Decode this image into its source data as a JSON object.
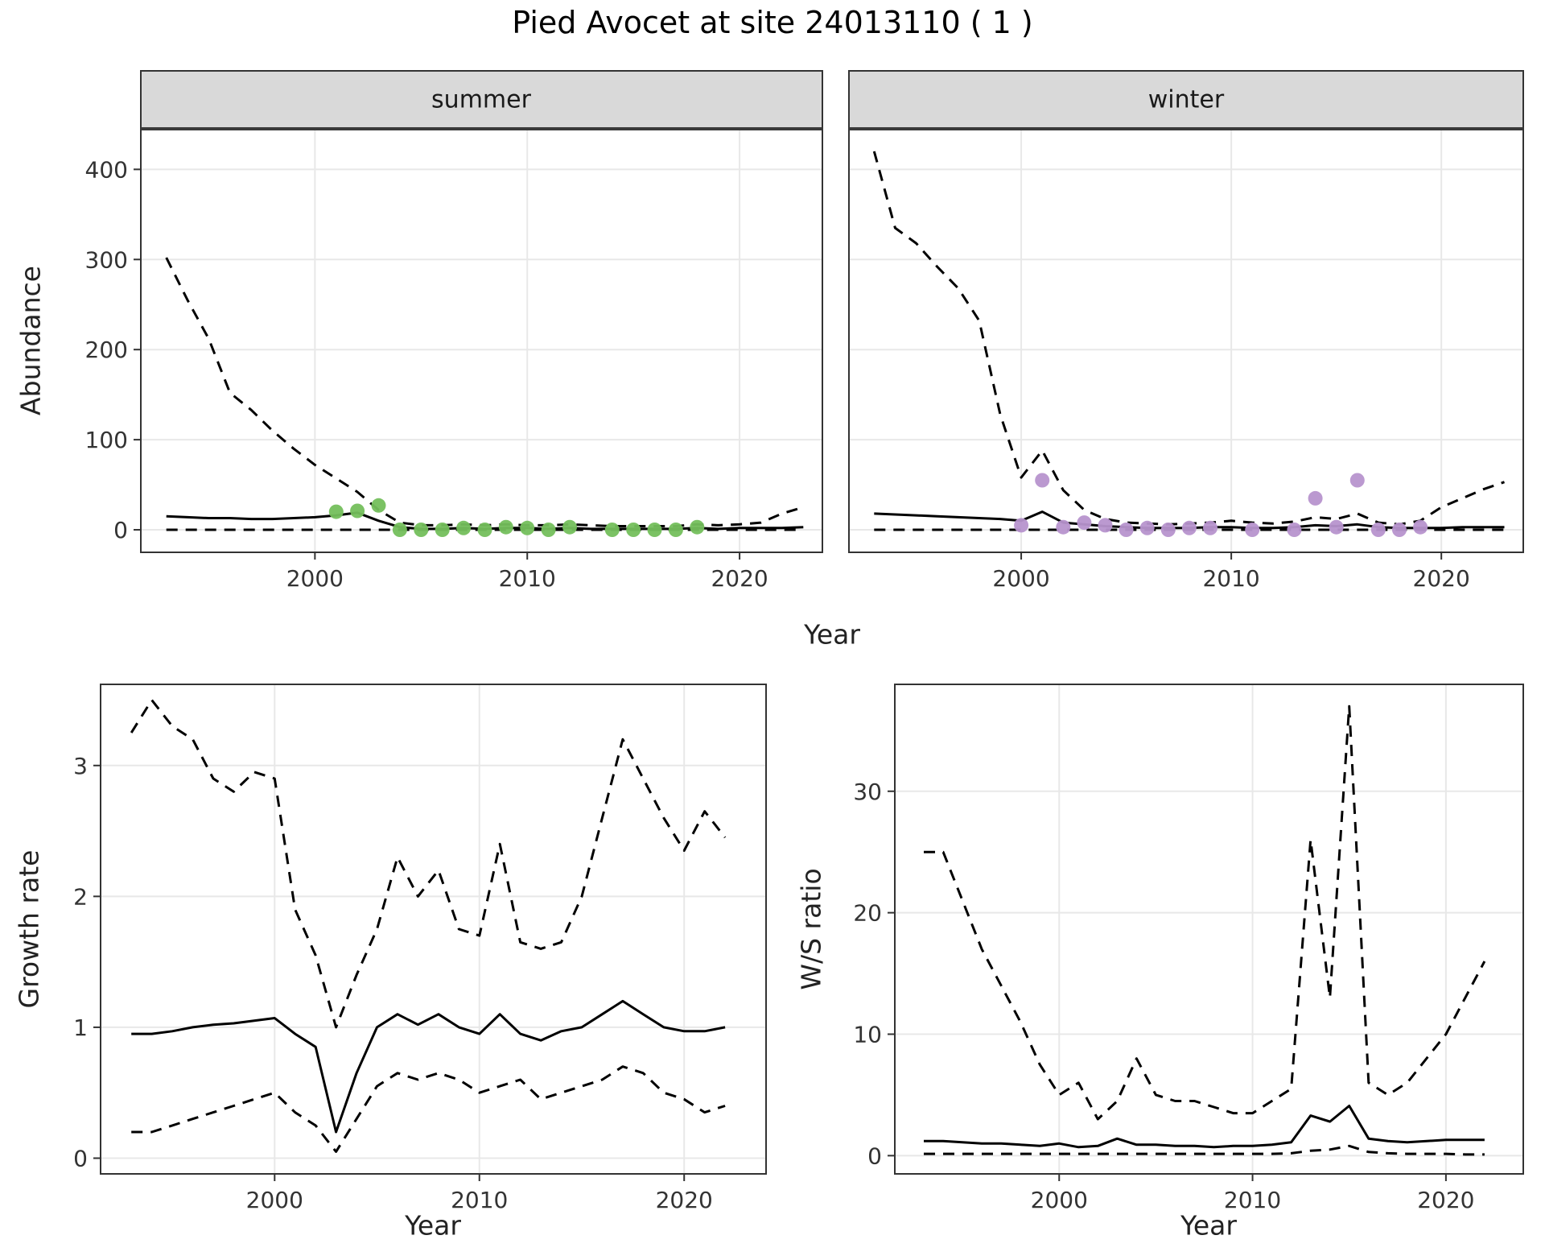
{
  "title": "Pied Avocet at site 24013110 ( 1 )",
  "labels": {
    "abundance": "Abundance",
    "year_top": "Year",
    "year_bottom_left": "Year",
    "year_bottom_right": "Year",
    "growth_rate": "Growth rate",
    "ws_ratio": "W/S ratio",
    "facet_summer": "summer",
    "facet_winter": "winter"
  },
  "colors": {
    "summer_points": "#74bf5c",
    "winter_points": "#b793ce",
    "line": "#000000",
    "grid": "#e8e8e8",
    "strip_bg": "#d9d9d9",
    "panel_border": "#333333"
  },
  "chart_data": [
    {
      "type": "line",
      "facet": "summer",
      "xlabel": "Year",
      "ylabel": "Abundance",
      "xlim": [
        1991.8,
        2023.9
      ],
      "ylim": [
        -25,
        445
      ],
      "xticks": [
        2000,
        2010,
        2020
      ],
      "yticks": [
        0,
        100,
        200,
        300,
        400
      ],
      "x": [
        1993,
        1994,
        1995,
        1996,
        1997,
        1998,
        1999,
        2000,
        2001,
        2002,
        2003,
        2004,
        2005,
        2006,
        2007,
        2008,
        2009,
        2010,
        2011,
        2012,
        2013,
        2014,
        2015,
        2016,
        2017,
        2018,
        2019,
        2020,
        2021,
        2022,
        2023
      ],
      "series": [
        {
          "name": "upper_ci",
          "style": "dashed",
          "values": [
            302,
            255,
            212,
            152,
            133,
            110,
            90,
            72,
            57,
            42,
            22,
            8,
            5,
            5,
            6,
            5,
            6,
            5,
            5,
            6,
            5,
            4,
            4,
            4,
            4,
            6,
            5,
            6,
            8,
            18,
            25
          ]
        },
        {
          "name": "median",
          "style": "solid",
          "values": [
            15,
            14,
            13,
            13,
            12,
            12,
            13,
            14,
            16,
            19,
            10,
            3,
            1,
            1,
            2,
            1,
            2,
            2,
            1,
            2,
            1,
            1,
            1,
            1,
            1,
            2,
            1,
            2,
            2,
            2,
            3
          ]
        },
        {
          "name": "lower_ci",
          "style": "dashed",
          "values": [
            0,
            0,
            0,
            0,
            0,
            0,
            0,
            0,
            0,
            0,
            0,
            0,
            0,
            0,
            0,
            0,
            0,
            0,
            0,
            0,
            0,
            0,
            0,
            0,
            0,
            0,
            0,
            0,
            0,
            0,
            0
          ]
        }
      ],
      "points": {
        "name": "observed_counts",
        "color_key": "summer_points",
        "x": [
          2001,
          2002,
          2003,
          2004,
          2005,
          2006,
          2007,
          2008,
          2009,
          2010,
          2011,
          2012,
          2014,
          2015,
          2016,
          2017,
          2018
        ],
        "y": [
          20,
          21,
          27,
          0,
          0,
          0,
          2,
          0,
          3,
          2,
          0,
          3,
          0,
          0,
          0,
          0,
          3
        ]
      }
    },
    {
      "type": "line",
      "facet": "winter",
      "xlabel": "Year",
      "ylabel": "Abundance",
      "xlim": [
        1991.8,
        2023.9
      ],
      "ylim": [
        -25,
        445
      ],
      "xticks": [
        2000,
        2010,
        2020
      ],
      "yticks": [
        0,
        100,
        200,
        300,
        400
      ],
      "x": [
        1993,
        1994,
        1995,
        1996,
        1997,
        1998,
        1999,
        2000,
        2001,
        2002,
        2003,
        2004,
        2005,
        2006,
        2007,
        2008,
        2009,
        2010,
        2011,
        2012,
        2013,
        2014,
        2015,
        2016,
        2017,
        2018,
        2019,
        2020,
        2021,
        2022,
        2023
      ],
      "series": [
        {
          "name": "upper_ci",
          "style": "dashed",
          "values": [
            420,
            335,
            318,
            292,
            268,
            232,
            128,
            58,
            88,
            44,
            22,
            12,
            8,
            7,
            6,
            7,
            8,
            10,
            8,
            7,
            9,
            14,
            12,
            18,
            8,
            6,
            10,
            25,
            35,
            45,
            53
          ]
        },
        {
          "name": "median",
          "style": "solid",
          "values": [
            18,
            17,
            16,
            15,
            14,
            13,
            12,
            10,
            20,
            8,
            6,
            4,
            3,
            2,
            2,
            2,
            3,
            3,
            2,
            2,
            3,
            5,
            4,
            6,
            3,
            2,
            2,
            2,
            3,
            3,
            3
          ]
        },
        {
          "name": "lower_ci",
          "style": "dashed",
          "values": [
            0,
            0,
            0,
            0,
            0,
            0,
            0,
            0,
            0,
            0,
            0,
            0,
            0,
            0,
            0,
            0,
            0,
            0,
            0,
            0,
            0,
            0,
            0,
            0,
            0,
            0,
            0,
            0,
            0,
            0,
            0
          ]
        }
      ],
      "points": {
        "name": "observed_counts",
        "color_key": "winter_points",
        "x": [
          2000,
          2001,
          2002,
          2003,
          2004,
          2005,
          2006,
          2007,
          2008,
          2009,
          2011,
          2013,
          2014,
          2015,
          2016,
          2017,
          2018,
          2019
        ],
        "y": [
          5,
          55,
          3,
          8,
          5,
          0,
          2,
          0,
          2,
          2,
          0,
          0,
          35,
          3,
          55,
          0,
          0,
          3
        ]
      }
    },
    {
      "type": "line",
      "facet": null,
      "xlabel": "Year",
      "ylabel": "Growth rate",
      "xlim": [
        1991.5,
        2024
      ],
      "ylim": [
        -0.12,
        3.62
      ],
      "xticks": [
        2000,
        2010,
        2020
      ],
      "yticks": [
        0,
        1,
        2,
        3
      ],
      "x": [
        1993,
        1994,
        1995,
        1996,
        1997,
        1998,
        1999,
        2000,
        2001,
        2002,
        2003,
        2004,
        2005,
        2006,
        2007,
        2008,
        2009,
        2010,
        2011,
        2012,
        2013,
        2014,
        2015,
        2016,
        2017,
        2018,
        2019,
        2020,
        2021,
        2022
      ],
      "series": [
        {
          "name": "upper_ci",
          "style": "dashed",
          "values": [
            3.25,
            3.5,
            3.3,
            3.2,
            2.9,
            2.8,
            2.95,
            2.9,
            1.9,
            1.55,
            1.0,
            1.4,
            1.75,
            2.3,
            2.0,
            2.2,
            1.75,
            1.7,
            2.4,
            1.65,
            1.6,
            1.65,
            2.0,
            2.6,
            3.2,
            2.9,
            2.6,
            2.35,
            2.65,
            2.45
          ]
        },
        {
          "name": "median",
          "style": "solid",
          "values": [
            0.95,
            0.95,
            0.97,
            1.0,
            1.02,
            1.03,
            1.05,
            1.07,
            0.95,
            0.85,
            0.2,
            0.65,
            1.0,
            1.1,
            1.02,
            1.1,
            1.0,
            0.95,
            1.1,
            0.95,
            0.9,
            0.97,
            1.0,
            1.1,
            1.2,
            1.1,
            1.0,
            0.97,
            0.97,
            1.0
          ]
        },
        {
          "name": "lower_ci",
          "style": "dashed",
          "values": [
            0.2,
            0.2,
            0.25,
            0.3,
            0.35,
            0.4,
            0.45,
            0.5,
            0.35,
            0.25,
            0.05,
            0.3,
            0.55,
            0.65,
            0.6,
            0.65,
            0.6,
            0.5,
            0.55,
            0.6,
            0.45,
            0.5,
            0.55,
            0.6,
            0.7,
            0.65,
            0.5,
            0.45,
            0.35,
            0.4
          ]
        }
      ],
      "points": null
    },
    {
      "type": "line",
      "facet": null,
      "xlabel": "Year",
      "ylabel": "W/S ratio",
      "xlim": [
        1991.5,
        2024
      ],
      "ylim": [
        -1.5,
        38.8
      ],
      "xticks": [
        2000,
        2010,
        2020
      ],
      "yticks": [
        0,
        10,
        20,
        30
      ],
      "x": [
        1993,
        1994,
        1995,
        1996,
        1997,
        1998,
        1999,
        2000,
        2001,
        2002,
        2003,
        2004,
        2005,
        2006,
        2007,
        2008,
        2009,
        2010,
        2011,
        2012,
        2013,
        2014,
        2015,
        2016,
        2017,
        2018,
        2019,
        2020,
        2021,
        2022
      ],
      "series": [
        {
          "name": "upper_ci",
          "style": "dashed",
          "values": [
            25,
            25,
            21,
            17,
            14,
            11,
            7.5,
            5,
            6,
            3,
            4.5,
            8,
            5,
            4.5,
            4.5,
            4,
            3.5,
            3.5,
            4.5,
            5.5,
            26,
            13,
            37,
            6,
            5,
            6,
            8,
            10,
            13,
            16
          ]
        },
        {
          "name": "median",
          "style": "solid",
          "values": [
            1.2,
            1.2,
            1.1,
            1.0,
            1.0,
            0.9,
            0.8,
            1.0,
            0.7,
            0.8,
            1.4,
            0.9,
            0.9,
            0.8,
            0.8,
            0.7,
            0.8,
            0.8,
            0.9,
            1.1,
            3.3,
            2.8,
            4.1,
            1.4,
            1.2,
            1.1,
            1.2,
            1.3,
            1.3,
            1.3
          ]
        },
        {
          "name": "lower_ci",
          "style": "dashed",
          "values": [
            0.15,
            0.15,
            0.15,
            0.15,
            0.15,
            0.15,
            0.15,
            0.15,
            0.15,
            0.15,
            0.15,
            0.15,
            0.15,
            0.15,
            0.15,
            0.15,
            0.15,
            0.15,
            0.15,
            0.2,
            0.4,
            0.5,
            0.8,
            0.3,
            0.2,
            0.15,
            0.15,
            0.15,
            0.1,
            0.1
          ]
        }
      ],
      "points": null
    }
  ]
}
